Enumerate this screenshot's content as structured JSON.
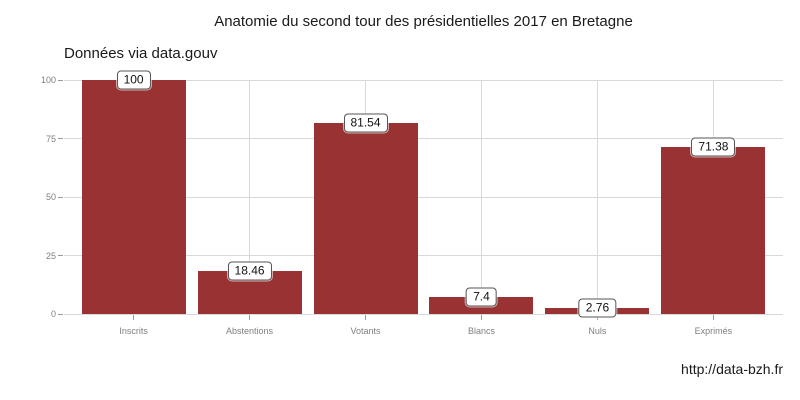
{
  "colors": {
    "bar": "#993333",
    "gridline": "#d9d9d9",
    "axis_text": "#7f7f7f",
    "tick_mark": "#999999",
    "label_box_border": "#555555",
    "label_box_bg": "#ffffff",
    "text": "#1a1a1a"
  },
  "chart_data": {
    "type": "bar",
    "title": "Anatomie du second tour des présidentielles 2017 en Bretagne",
    "subtitle": "Données via data.gouv",
    "caption": "http://data-bzh.fr",
    "categories": [
      "Inscrits",
      "Abstentions",
      "Votants",
      "Blancs",
      "Nuls",
      "Exprimés"
    ],
    "values": [
      100,
      18.46,
      81.54,
      7.4,
      2.76,
      71.38
    ],
    "xlabel": "",
    "ylabel": "",
    "ylim": [
      0,
      100
    ],
    "yticks": [
      0,
      25,
      50,
      75,
      100
    ],
    "grid": "on",
    "legend": "none",
    "bar_color": "#993333"
  }
}
